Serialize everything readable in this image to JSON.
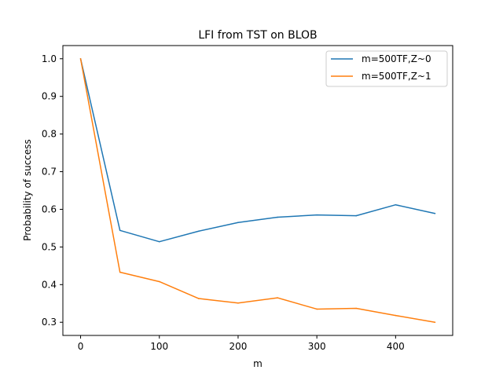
{
  "chart_data": {
    "type": "line",
    "title": "LFI from TST on BLOB",
    "xlabel": "m",
    "ylabel": "Probability of success",
    "x": [
      0,
      50,
      100,
      150,
      200,
      250,
      300,
      350,
      400,
      450
    ],
    "series": [
      {
        "name": "m=500TF,Z~0",
        "color": "#1f77b4",
        "values": [
          1.0,
          0.544,
          0.514,
          0.542,
          0.565,
          0.579,
          0.585,
          0.583,
          0.612,
          0.589
        ]
      },
      {
        "name": "m=500TF,Z~1",
        "color": "#ff7f0e",
        "values": [
          1.0,
          0.433,
          0.408,
          0.363,
          0.351,
          0.365,
          0.335,
          0.337,
          0.318,
          0.3
        ]
      }
    ],
    "xlim": [
      -22.5,
      472.5
    ],
    "ylim": [
      0.265,
      1.035
    ],
    "xticks": [
      0,
      100,
      200,
      300,
      400
    ],
    "yticks": [
      0.3,
      0.4,
      0.5,
      0.6,
      0.7,
      0.8,
      0.9,
      1.0
    ],
    "xtick_labels": [
      "0",
      "100",
      "200",
      "300",
      "400"
    ],
    "ytick_labels": [
      "0.3",
      "0.4",
      "0.5",
      "0.6",
      "0.7",
      "0.8",
      "0.9",
      "1.0"
    ],
    "grid": false,
    "legend_position": "top-right"
  }
}
